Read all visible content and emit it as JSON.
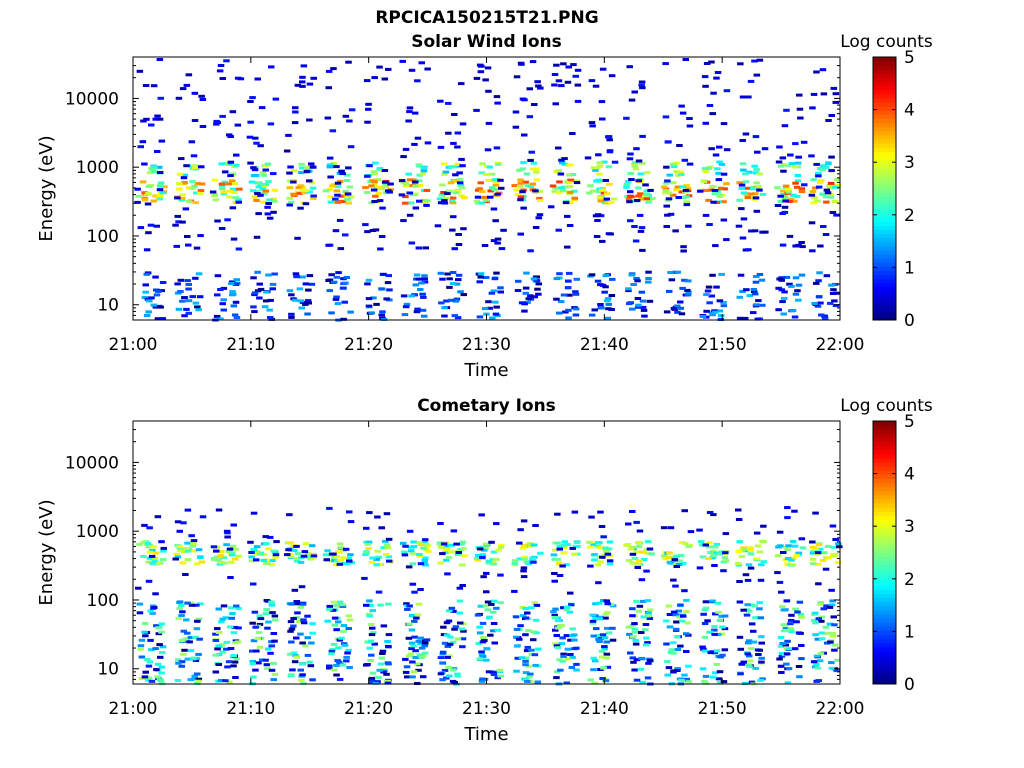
{
  "figure": {
    "title": "RPCICA150215T21.PNG"
  },
  "colorbar": {
    "label": "Log counts",
    "ticks": [
      0,
      1,
      2,
      3,
      4,
      5
    ],
    "colormap": "jet",
    "colors": [
      "#00007f",
      "#0000ff",
      "#007fff",
      "#00ffff",
      "#7fff7f",
      "#ffff00",
      "#ff7f00",
      "#ff0000",
      "#7f0000"
    ]
  },
  "chart_data": [
    {
      "type": "heatmap",
      "title": "Solar Wind Ions",
      "xlabel": "Time",
      "ylabel": "Energy (eV)",
      "xlim": [
        "21:00",
        "22:00"
      ],
      "x_ticks": [
        "21:00",
        "21:10",
        "21:20",
        "21:30",
        "21:40",
        "21:50",
        "22:00"
      ],
      "ylim": [
        6,
        40000
      ],
      "y_scale": "log",
      "y_ticks": [
        10,
        100,
        1000,
        10000
      ],
      "y_tick_labels": [
        "10",
        "100",
        "1000",
        "10000"
      ],
      "colorbar_label": "Log counts",
      "clim": [
        0,
        5
      ],
      "sweep_times_min": [
        1.3,
        4.5,
        7.7,
        10.8,
        14.0,
        17.2,
        20.5,
        23.7,
        26.8,
        30.0,
        33.2,
        36.4,
        39.5,
        42.7,
        45.9,
        49.0,
        52.2,
        55.5,
        58.5
      ],
      "peak_energy_eV": 450,
      "peak_log_counts": 4.2,
      "secondary_band_eV": 950,
      "low_energy_band_eV": [
        6,
        30
      ]
    },
    {
      "type": "heatmap",
      "title": "Cometary Ions",
      "xlabel": "Time",
      "ylabel": "Energy (eV)",
      "xlim": [
        "21:00",
        "22:00"
      ],
      "x_ticks": [
        "21:00",
        "21:10",
        "21:20",
        "21:30",
        "21:40",
        "21:50",
        "22:00"
      ],
      "ylim": [
        6,
        40000
      ],
      "y_scale": "log",
      "y_ticks": [
        10,
        100,
        1000,
        10000
      ],
      "y_tick_labels": [
        "10",
        "100",
        "1000",
        "10000"
      ],
      "colorbar_label": "Log counts",
      "clim": [
        0,
        5
      ],
      "sweep_times_min": [
        1.3,
        4.5,
        7.7,
        10.8,
        14.0,
        17.2,
        20.5,
        23.7,
        26.8,
        30.0,
        33.2,
        36.4,
        39.5,
        42.7,
        45.9,
        49.0,
        52.2,
        55.5,
        58.5
      ],
      "peak_energy_eV": 480,
      "peak_log_counts": 3.3,
      "low_energy_band_eV": [
        6,
        100
      ],
      "low_energy_peak_log_counts": 2.8
    }
  ]
}
